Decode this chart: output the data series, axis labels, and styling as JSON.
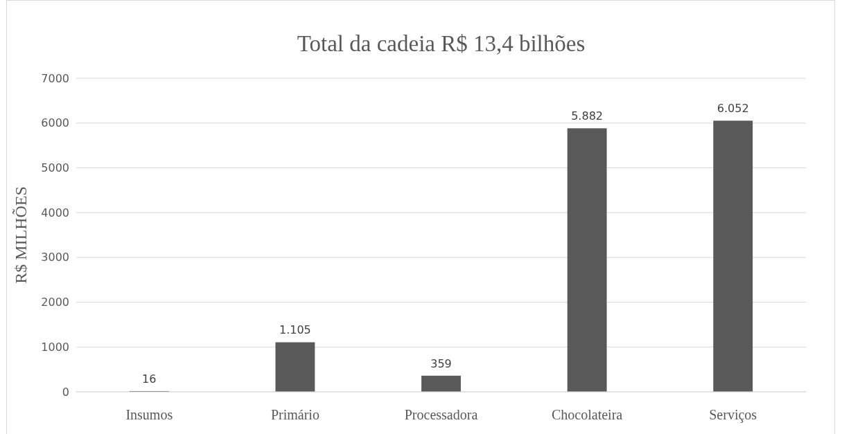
{
  "chart_data": {
    "type": "bar",
    "title": "Total da cadeia R$ 13,4 bilhões",
    "ylabel": "R$ MILHÕES",
    "categories": [
      "Insumos",
      "Primário",
      "Processadora",
      "Chocolateira",
      "Serviços"
    ],
    "values": [
      16,
      1105,
      359,
      5882,
      6052
    ],
    "value_labels": [
      "16",
      "1.105",
      "359",
      "5.882",
      "6.052"
    ],
    "color": "#595959",
    "ylim": [
      0,
      7000
    ],
    "yticks": [
      0,
      1000,
      2000,
      3000,
      4000,
      5000,
      6000,
      7000
    ],
    "grid": "y"
  }
}
